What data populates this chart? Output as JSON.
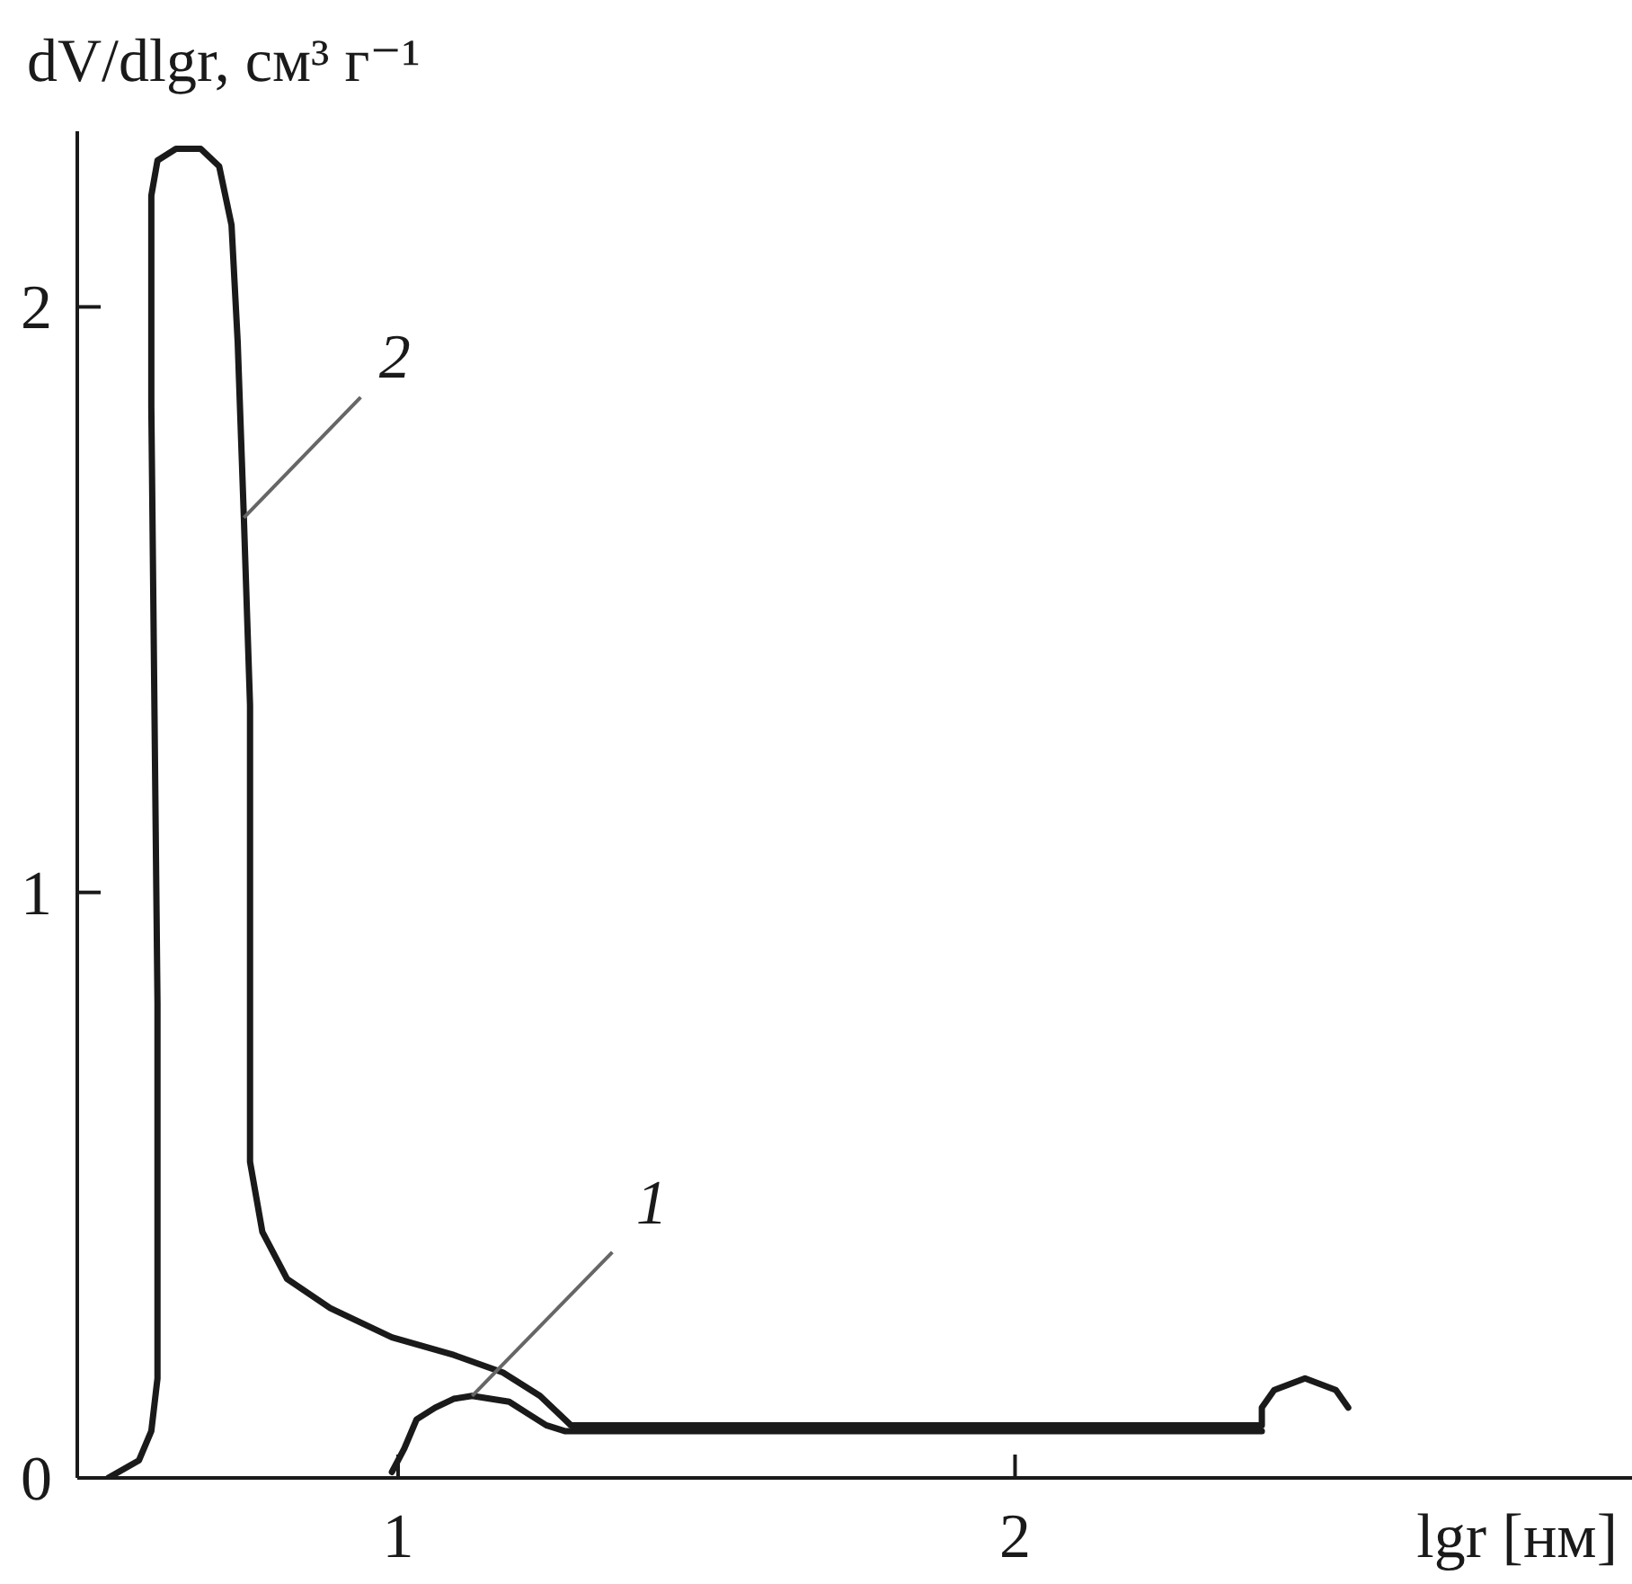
{
  "chart_data": {
    "type": "line",
    "xlabel": "lgr [нм]",
    "ylabel": "dV/dlgr, см³ г⁻¹",
    "xlim": [
      0.48,
      3.0
    ],
    "ylim": [
      0,
      2.3
    ],
    "xticks": [
      1,
      2
    ],
    "yticks": [
      0,
      1,
      2
    ],
    "marker": "none",
    "line_style": "solid",
    "series": [
      {
        "name": "1",
        "color": "#1a1a1a",
        "x": [
          0.99,
          1.01,
          1.03,
          1.06,
          1.09,
          1.12,
          1.15,
          1.18,
          1.21,
          1.24,
          1.27,
          2.4
        ],
        "values": [
          0.01,
          0.05,
          0.1,
          0.12,
          0.135,
          0.14,
          0.135,
          0.13,
          0.11,
          0.09,
          0.08,
          0.08
        ]
      },
      {
        "name": "2",
        "color": "#1a1a1a",
        "x": [
          0.53,
          0.58,
          0.6,
          0.61,
          0.61,
          0.6,
          0.6,
          0.61,
          0.64,
          0.68,
          0.71,
          0.73,
          0.74,
          0.75,
          0.76,
          0.76,
          0.78,
          0.82,
          0.89,
          0.99,
          1.09,
          1.17,
          1.23,
          1.28,
          1.32,
          2.4,
          2.4,
          2.42,
          2.47,
          2.52,
          2.54
        ],
        "values": [
          0,
          0.03,
          0.08,
          0.17,
          0.81,
          1.83,
          2.19,
          2.25,
          2.27,
          2.27,
          2.24,
          2.14,
          1.94,
          1.64,
          1.32,
          0.54,
          0.42,
          0.34,
          0.29,
          0.24,
          0.21,
          0.18,
          0.14,
          0.09,
          0.09,
          0.09,
          0.12,
          0.15,
          0.17,
          0.15,
          0.12
        ]
      }
    ]
  }
}
